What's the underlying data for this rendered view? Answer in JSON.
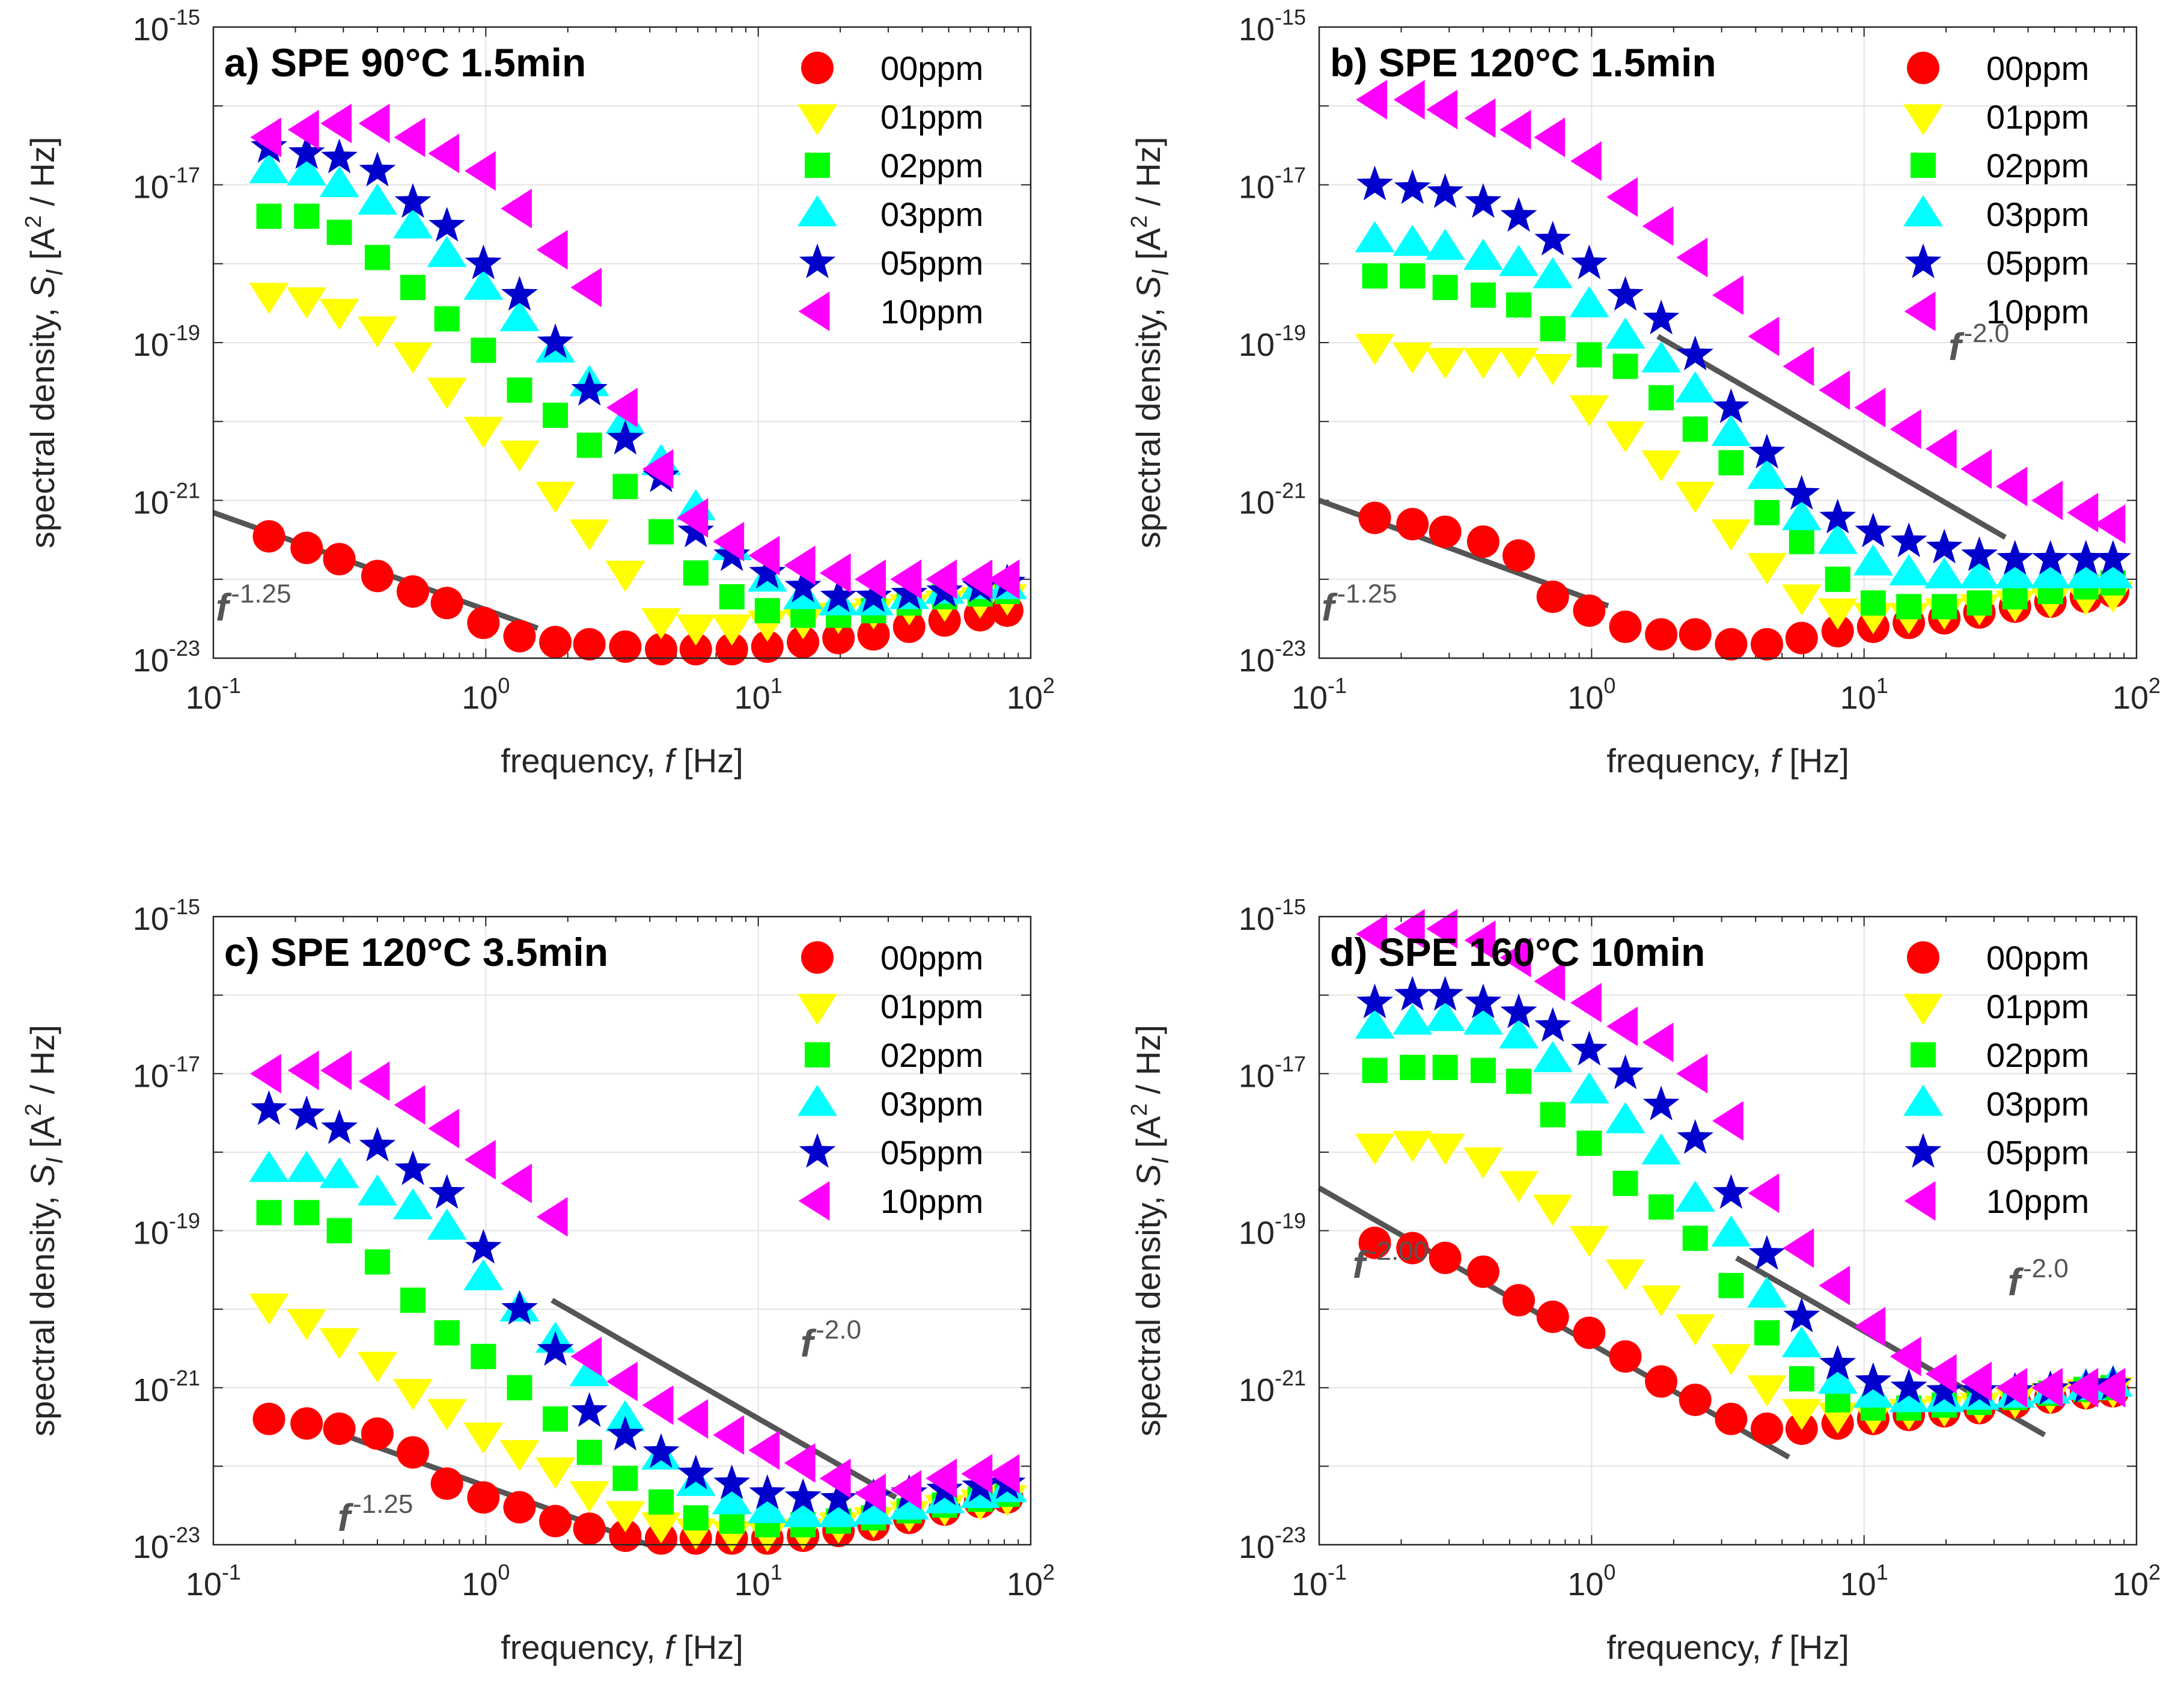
{
  "chart_data": [
    {
      "type": "scatter",
      "title": "a) SPE 90°C 1.5min",
      "xlabel": "frequency, f [Hz]",
      "ylabel": "spectral density, S_I [A² / Hz]",
      "xscale": "log",
      "yscale": "log",
      "xlim": [
        0.1,
        100
      ],
      "ylim": [
        1e-23,
        1e-15
      ],
      "grid": true,
      "legend_position": "top-right",
      "x": [
        0.16,
        0.22,
        0.29,
        0.4,
        0.54,
        0.72,
        0.98,
        1.33,
        1.8,
        2.4,
        3.25,
        4.4,
        5.9,
        8.0,
        10.8,
        14.6,
        19.7,
        26.5,
        35.8,
        48.3,
        65.2,
        82.0
      ],
      "series": [
        {
          "name": "00ppm",
          "marker": "circle",
          "color": "#FF0000",
          "values": [
            3.5e-22,
            2.5e-22,
            1.8e-22,
            1.1e-22,
            7e-23,
            5e-23,
            2.8e-23,
            1.9e-23,
            1.6e-23,
            1.5e-23,
            1.4e-23,
            1.3e-23,
            1.3e-23,
            1.3e-23,
            1.4e-23,
            1.6e-23,
            1.8e-23,
            2e-23,
            2.5e-23,
            3e-23,
            3.5e-23,
            4e-23
          ]
        },
        {
          "name": "01ppm",
          "marker": "triangle-down",
          "color": "#FFFF00",
          "values": [
            4e-19,
            3.5e-19,
            2.5e-19,
            1.5e-19,
            7e-20,
            2.5e-20,
            8e-21,
            4e-21,
            1.2e-21,
            4e-22,
            1.2e-22,
            3e-23,
            2.5e-23,
            2.5e-23,
            2.8e-23,
            3e-23,
            3.5e-23,
            4e-23,
            4.5e-23,
            5e-23,
            5.5e-23,
            6e-23
          ]
        },
        {
          "name": "02ppm",
          "marker": "square",
          "color": "#00FF00",
          "values": [
            4e-18,
            4e-18,
            2.5e-18,
            1.2e-18,
            5e-19,
            2e-19,
            8e-20,
            2.5e-20,
            1.2e-20,
            5e-21,
            1.5e-21,
            4e-22,
            1.2e-22,
            6e-23,
            4e-23,
            3.5e-23,
            3.5e-23,
            4e-23,
            5e-23,
            6e-23,
            6.5e-23,
            7e-23
          ]
        },
        {
          "name": "03ppm",
          "marker": "triangle-up",
          "color": "#00FFFF",
          "values": [
            1.5e-17,
            1.4e-17,
            1e-17,
            6e-18,
            3e-18,
            1.3e-18,
            5e-19,
            2e-19,
            8e-20,
            3e-20,
            1e-20,
            3e-21,
            8e-22,
            2.5e-22,
            1e-22,
            6e-23,
            5e-23,
            5e-23,
            6e-23,
            7e-23,
            8e-23,
            8e-23
          ]
        },
        {
          "name": "05ppm",
          "marker": "star",
          "color": "#0000CC",
          "values": [
            3e-17,
            2.5e-17,
            2.2e-17,
            1.5e-17,
            6e-18,
            3e-18,
            1e-18,
            4e-19,
            1e-19,
            2.5e-20,
            6e-21,
            2e-21,
            4e-22,
            2e-22,
            1.2e-22,
            8e-23,
            6e-23,
            6e-23,
            6.5e-23,
            7e-23,
            8e-23,
            9e-23
          ]
        },
        {
          "name": "10ppm",
          "marker": "triangle-left",
          "color": "#FF00FF",
          "values": [
            4e-17,
            5e-17,
            6e-17,
            6e-17,
            4e-17,
            2.5e-17,
            1.5e-17,
            5e-18,
            1.5e-18,
            5e-19,
            1.5e-20,
            2.5e-21,
            6e-22,
            3e-22,
            2e-22,
            1.5e-22,
            1.2e-22,
            1e-22,
            1e-22,
            1e-22,
            1e-22,
            1e-22
          ]
        }
      ],
      "fits": [
        {
          "label": "f",
          "exponent": "-1.25",
          "x_range": [
            0.1,
            1.55
          ],
          "y_range": [
            7e-22,
            2.4e-23
          ],
          "label_anchor": [
            0.1,
            3e-23
          ]
        }
      ]
    },
    {
      "type": "scatter",
      "title": "b) SPE 120°C 1.5min",
      "xlabel": "frequency, f [Hz]",
      "ylabel": "spectral density, S_I [A² / Hz]",
      "xscale": "log",
      "yscale": "log",
      "xlim": [
        0.1,
        100
      ],
      "ylim": [
        1e-23,
        1e-15
      ],
      "grid": true,
      "legend_position": "top-right",
      "x": [
        0.16,
        0.22,
        0.29,
        0.4,
        0.54,
        0.72,
        0.98,
        1.33,
        1.8,
        2.4,
        3.25,
        4.4,
        5.9,
        8.0,
        10.8,
        14.6,
        19.7,
        26.5,
        35.8,
        48.3,
        65.2,
        82.0
      ],
      "series": [
        {
          "name": "00ppm",
          "marker": "circle",
          "color": "#FF0000",
          "values": [
            6e-22,
            5e-22,
            4e-22,
            3e-22,
            2e-22,
            6e-23,
            4e-23,
            2.5e-23,
            2e-23,
            2e-23,
            1.5e-23,
            1.5e-23,
            1.8e-23,
            2.2e-23,
            2.5e-23,
            2.8e-23,
            3.2e-23,
            3.8e-23,
            4.5e-23,
            5.2e-23,
            6e-23,
            7e-23
          ]
        },
        {
          "name": "01ppm",
          "marker": "triangle-down",
          "color": "#FFFF00",
          "values": [
            9e-20,
            7e-20,
            6e-20,
            6e-20,
            6e-20,
            5e-20,
            1.5e-20,
            7e-21,
            3e-21,
            1.2e-21,
            4e-22,
            1.5e-22,
            6e-23,
            4e-23,
            3.5e-23,
            3.5e-23,
            4e-23,
            4.5e-23,
            5e-23,
            5.5e-23,
            6e-23,
            6.5e-23
          ]
        },
        {
          "name": "02ppm",
          "marker": "square",
          "color": "#00FF00",
          "values": [
            7e-19,
            7e-19,
            5e-19,
            4e-19,
            3e-19,
            1.5e-19,
            7e-20,
            5e-20,
            2e-20,
            8e-21,
            3e-21,
            7e-22,
            3e-22,
            1e-22,
            5e-23,
            4.5e-23,
            4.5e-23,
            5e-23,
            6e-23,
            7e-23,
            8e-23,
            9e-23
          ]
        },
        {
          "name": "03ppm",
          "marker": "triangle-up",
          "color": "#00FFFF",
          "values": [
            2e-18,
            1.8e-18,
            1.6e-18,
            1.2e-18,
            1e-18,
            7e-19,
            3e-19,
            1.2e-19,
            6e-20,
            2.5e-20,
            7e-21,
            2e-21,
            6e-22,
            3e-22,
            1.6e-22,
            1.2e-22,
            1.1e-22,
            1.1e-22,
            1.1e-22,
            1.1e-22,
            1.1e-22,
            1.1e-22
          ]
        },
        {
          "name": "05ppm",
          "marker": "star",
          "color": "#0000CC",
          "values": [
            1e-17,
            9e-18,
            8e-18,
            6e-18,
            4e-18,
            2e-18,
            1e-18,
            4e-19,
            2e-19,
            7e-20,
            1.5e-20,
            4e-21,
            1.2e-21,
            6e-22,
            4e-22,
            3e-22,
            2.5e-22,
            2e-22,
            1.8e-22,
            1.8e-22,
            1.8e-22,
            1.8e-22
          ]
        },
        {
          "name": "10ppm",
          "marker": "triangle-left",
          "color": "#FF00FF",
          "values": [
            1.2e-16,
            1.2e-16,
            9e-17,
            7e-17,
            5e-17,
            4e-17,
            2e-17,
            7e-18,
            3e-18,
            1.2e-18,
            4e-19,
            1.2e-19,
            5e-20,
            2.5e-20,
            1.5e-20,
            8e-21,
            4.5e-21,
            2.5e-21,
            1.5e-21,
            1e-21,
            7e-22,
            5e-22
          ]
        }
      ],
      "fits": [
        {
          "label": "f",
          "exponent": "-1.25",
          "x_range": [
            0.1,
            1.15
          ],
          "y_range": [
            1e-21,
            4.6e-23
          ],
          "label_anchor": [
            0.1,
            3e-23
          ]
        },
        {
          "label": "f",
          "exponent": "-2.0",
          "x_range": [
            1.75,
            33
          ],
          "y_range": [
            1.2e-19,
            3.4e-22
          ],
          "label_anchor": [
            20,
            6e-20
          ]
        }
      ]
    },
    {
      "type": "scatter",
      "title": "c) SPE 120°C 3.5min",
      "xlabel": "frequency, f [Hz]",
      "ylabel": "spectral density, S_I [A² / Hz]",
      "xscale": "log",
      "yscale": "log",
      "xlim": [
        0.1,
        100
      ],
      "ylim": [
        1e-23,
        1e-15
      ],
      "grid": true,
      "legend_position": "top-right",
      "x": [
        0.16,
        0.22,
        0.29,
        0.4,
        0.54,
        0.72,
        0.98,
        1.33,
        1.8,
        2.4,
        3.25,
        4.4,
        5.9,
        8.0,
        10.8,
        14.6,
        19.7,
        26.5,
        35.8,
        48.3,
        65.2,
        82.0
      ],
      "series": [
        {
          "name": "00ppm",
          "marker": "circle",
          "color": "#FF0000",
          "values": [
            4e-22,
            3.5e-22,
            3e-22,
            2.6e-22,
            1.5e-22,
            6e-23,
            4e-23,
            3e-23,
            2e-23,
            1.6e-23,
            1.3e-23,
            1.2e-23,
            1.2e-23,
            1.2e-23,
            1.2e-23,
            1.3e-23,
            1.5e-23,
            1.8e-23,
            2.2e-23,
            2.8e-23,
            3.5e-23,
            4e-23
          ]
        },
        {
          "name": "01ppm",
          "marker": "triangle-down",
          "color": "#FFFF00",
          "values": [
            1.1e-20,
            7e-21,
            4e-21,
            2e-21,
            9e-22,
            5e-22,
            2.5e-22,
            1.5e-22,
            9e-23,
            4.5e-23,
            2.5e-23,
            1.8e-23,
            1.5e-23,
            1.4e-23,
            1.4e-23,
            1.5e-23,
            1.8e-23,
            2.1e-23,
            2.5e-23,
            3e-23,
            3.5e-23,
            4e-23
          ]
        },
        {
          "name": "02ppm",
          "marker": "square",
          "color": "#00FF00",
          "values": [
            1.7e-19,
            1.7e-19,
            1e-19,
            4e-20,
            1.3e-20,
            5e-21,
            2.5e-21,
            1e-21,
            4e-22,
            1.5e-22,
            7e-23,
            3.5e-23,
            2.2e-23,
            2e-23,
            1.8e-23,
            1.8e-23,
            2e-23,
            2.2e-23,
            2.7e-23,
            3.2e-23,
            3.8e-23,
            4.4e-23
          ]
        },
        {
          "name": "03ppm",
          "marker": "triangle-up",
          "color": "#00FFFF",
          "values": [
            6e-19,
            6e-19,
            5e-19,
            3e-19,
            2e-19,
            1.1e-19,
            2.5e-20,
            1e-20,
            4e-21,
            1.5e-21,
            4e-22,
            1.3e-22,
            6e-23,
            3.5e-23,
            2.7e-23,
            2.4e-23,
            2.4e-23,
            2.6e-23,
            3e-23,
            3.6e-23,
            4.2e-23,
            5e-23
          ]
        },
        {
          "name": "05ppm",
          "marker": "star",
          "color": "#0000CC",
          "values": [
            3.5e-18,
            3e-18,
            2e-18,
            1.2e-18,
            6e-19,
            3e-19,
            6e-20,
            1e-20,
            3e-21,
            5e-22,
            2.5e-22,
            1.5e-22,
            8e-23,
            6e-23,
            4.5e-23,
            4e-23,
            3.8e-23,
            4e-23,
            4.5e-23,
            5e-23,
            5.5e-23,
            6e-23
          ]
        },
        {
          "name": "10ppm",
          "marker": "triangle-left",
          "color": "#FF00FF",
          "values": [
            1e-17,
            1.1e-17,
            1.1e-17,
            8e-18,
            4e-18,
            2e-18,
            8e-19,
            4e-19,
            1.5e-19,
            2.5e-21,
            1.2e-21,
            6e-22,
            4e-22,
            2.5e-22,
            1.6e-22,
            1.1e-22,
            7e-23,
            4.5e-23,
            5e-23,
            7e-23,
            8e-23,
            8e-23
          ]
        }
      ],
      "fits": [
        {
          "label": "f",
          "exponent": "-1.25",
          "x_range": [
            0.26,
            4.3
          ],
          "y_range": [
            3e-22,
            9e-24
          ],
          "label_anchor": [
            0.28,
            1.5e-23
          ]
        },
        {
          "label": "f",
          "exponent": "-2.0",
          "x_range": [
            1.75,
            32
          ],
          "y_range": [
            1.3e-20,
            4e-23
          ],
          "label_anchor": [
            14,
            2.5e-21
          ]
        }
      ]
    },
    {
      "type": "scatter",
      "title": "d) SPE 160°C 10min",
      "xlabel": "frequency, f [Hz]",
      "ylabel": "spectral density, S_I [A² / Hz]",
      "xscale": "log",
      "yscale": "log",
      "xlim": [
        0.1,
        100
      ],
      "ylim": [
        1e-23,
        1e-15
      ],
      "grid": true,
      "legend_position": "top-right",
      "x": [
        0.16,
        0.22,
        0.29,
        0.4,
        0.54,
        0.72,
        0.98,
        1.33,
        1.8,
        2.4,
        3.25,
        4.4,
        5.9,
        8.0,
        10.8,
        14.6,
        19.7,
        26.5,
        35.8,
        48.3,
        65.2,
        82.0
      ],
      "series": [
        {
          "name": "00ppm",
          "marker": "circle",
          "color": "#FF0000",
          "values": [
            7e-20,
            6e-20,
            4.5e-20,
            3e-20,
            1.3e-20,
            8e-21,
            5e-21,
            2.5e-21,
            1.2e-21,
            7e-22,
            4e-22,
            3e-22,
            3e-22,
            3.5e-22,
            4e-22,
            4.5e-22,
            5e-22,
            5.5e-22,
            6.5e-22,
            7.5e-22,
            8.5e-22,
            9e-22
          ]
        },
        {
          "name": "01ppm",
          "marker": "triangle-down",
          "color": "#FFFF00",
          "values": [
            1.2e-18,
            1.3e-18,
            1.2e-18,
            8e-19,
            4e-19,
            2e-19,
            8e-20,
            3e-20,
            1.4e-20,
            6e-21,
            2.5e-21,
            1e-21,
            5e-22,
            4.5e-22,
            4.5e-22,
            5e-22,
            5.5e-22,
            6e-22,
            7e-22,
            8e-22,
            9e-22,
            9.5e-22
          ]
        },
        {
          "name": "02ppm",
          "marker": "square",
          "color": "#00FF00",
          "values": [
            1.1e-17,
            1.2e-17,
            1.2e-17,
            1.1e-17,
            8e-18,
            3e-18,
            1.3e-18,
            4e-19,
            2e-19,
            8e-20,
            2e-20,
            5e-21,
            1.3e-21,
            7e-22,
            5.5e-22,
            5.5e-22,
            6e-22,
            6.5e-22,
            7.5e-22,
            8.5e-22,
            9.5e-22,
            1e-21
          ]
        },
        {
          "name": "03ppm",
          "marker": "triangle-up",
          "color": "#00FFFF",
          "values": [
            4e-17,
            4.5e-17,
            5e-17,
            4.5e-17,
            3e-17,
            1.5e-17,
            6e-18,
            2.5e-18,
            1e-18,
            2.5e-19,
            9e-20,
            1.5e-20,
            3.5e-21,
            1.2e-21,
            8e-22,
            7e-22,
            7e-22,
            7.5e-22,
            8e-22,
            9e-22,
            1e-21,
            1.1e-21
          ]
        },
        {
          "name": "05ppm",
          "marker": "star",
          "color": "#0000CC",
          "values": [
            8e-17,
            1e-16,
            1e-16,
            8e-17,
            6e-17,
            4e-17,
            2e-17,
            1e-17,
            4e-18,
            1.5e-18,
            3e-19,
            5e-20,
            8e-21,
            2e-21,
            1.2e-21,
            1e-21,
            9e-22,
            9e-22,
            9e-22,
            9.5e-22,
            1e-21,
            1.1e-21
          ]
        },
        {
          "name": "10ppm",
          "marker": "triangle-left",
          "color": "#FF00FF",
          "values": [
            6e-16,
            7e-16,
            7e-16,
            5e-16,
            3e-16,
            1.5e-16,
            8e-17,
            4e-17,
            2.5e-17,
            1e-17,
            2.5e-18,
            3e-19,
            6e-20,
            2e-20,
            6e-21,
            2.5e-21,
            1.5e-21,
            1.2e-21,
            1e-21,
            1e-21,
            1e-21,
            1e-21
          ]
        }
      ],
      "fits": [
        {
          "label": "f",
          "exponent": "-2.00",
          "x_range": [
            0.1,
            5.3
          ],
          "y_range": [
            3.5e-19,
            1.3e-22
          ],
          "label_anchor": [
            0.13,
            2.5e-20
          ]
        },
        {
          "label": "f",
          "exponent": "-2.0",
          "x_range": [
            3.4,
            46
          ],
          "y_range": [
            4.5e-20,
            2.5e-22
          ],
          "label_anchor": [
            33,
            1.5e-20
          ]
        }
      ]
    }
  ]
}
